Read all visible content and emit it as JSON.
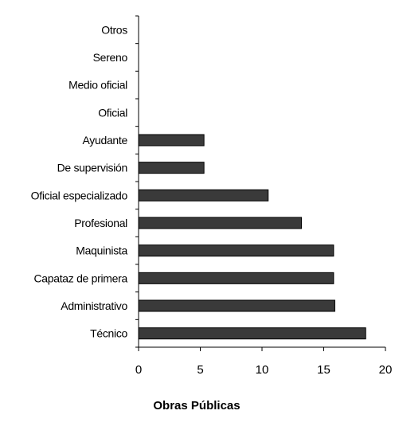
{
  "chart_data": {
    "type": "bar",
    "orientation": "horizontal",
    "title": "Obras Públicas",
    "categories": [
      "Otros",
      "Sereno",
      "Medio oficial",
      "Oficial",
      "Ayudante",
      "De supervisión",
      "Oficial especializado",
      "Profesional",
      "Maquinista",
      "Capataz de primera",
      "Administrativo",
      "Técnico"
    ],
    "values": [
      0,
      0,
      0,
      0,
      5.3,
      5.3,
      10.5,
      13.2,
      15.8,
      15.8,
      15.9,
      18.4
    ],
    "xlim": [
      0,
      20
    ],
    "xticks": [
      "0",
      "5",
      "10",
      "15",
      "20"
    ],
    "grid": false,
    "colors": {
      "bar": "#3a3a3a"
    }
  }
}
